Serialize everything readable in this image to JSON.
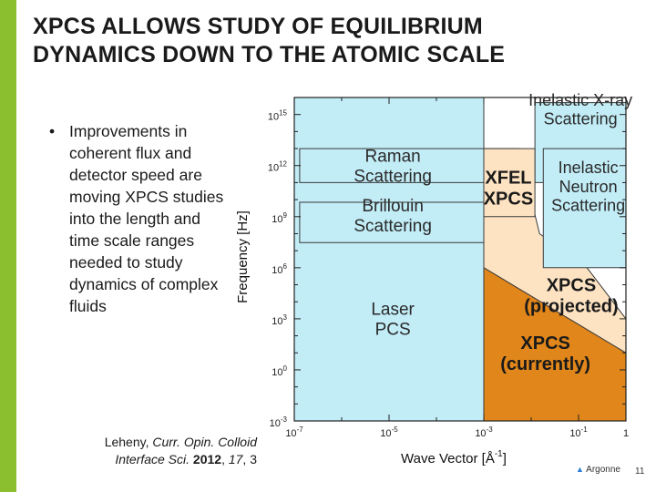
{
  "slide": {
    "title_line1": "XPCS ALLOWS STUDY OF EQUILIBRIUM",
    "title_line2": "DYNAMICS DOWN TO THE ATOMIC SCALE",
    "bullet_marker": "•",
    "bullet_text": "Improvements in coherent flux and detector speed are moving XPCS studies into the length and time scale ranges needed to study dynamics of complex fluids",
    "citation": {
      "authors": "Leheny, ",
      "journal_line1": "Curr. Opin. Colloid",
      "journal_line2": "Interface Sci.",
      "year": "2012",
      "volume": "17",
      "page": "3",
      "sep": ", "
    },
    "footer_logo": "Argonne",
    "page_number": "11",
    "accent_color": "#8cbf2f"
  },
  "chart_data": {
    "type": "area",
    "xlabel": "Wave Vector [Å",
    "xlabel_exp": "-1",
    "xlabel_close": "]",
    "ylabel": "Frequency [Hz]",
    "x_scale": "log",
    "y_scale": "log",
    "xlim": [
      1e-07,
      1
    ],
    "ylim": [
      0.001,
      1e+16
    ],
    "x_ticks": [
      {
        "value": 1e-07,
        "base": "10",
        "exp": "-7"
      },
      {
        "value": 1e-05,
        "base": "10",
        "exp": "-5"
      },
      {
        "value": 0.001,
        "base": "10",
        "exp": "-3"
      },
      {
        "value": 0.1,
        "base": "10",
        "exp": "-1"
      },
      {
        "value": 1,
        "base": "1",
        "exp": ""
      }
    ],
    "y_ticks": [
      {
        "value": 1000000000000000.0,
        "base": "10",
        "exp": "15"
      },
      {
        "value": 1000000000000.0,
        "base": "10",
        "exp": "12"
      },
      {
        "value": 1000000000.0,
        "base": "10",
        "exp": "9"
      },
      {
        "value": 1000000.0,
        "base": "10",
        "exp": "6"
      },
      {
        "value": 1000.0,
        "base": "10",
        "exp": "3"
      },
      {
        "value": 1,
        "base": "10",
        "exp": "0"
      },
      {
        "value": 0.001,
        "base": "10",
        "exp": "-3"
      }
    ],
    "regions": [
      {
        "id": "laser-pcs",
        "lines": [
          "Laser",
          "PCS"
        ],
        "color": "#c2ecf6",
        "polygon": [
          [
            1e-07,
            0.001
          ],
          [
            0.001,
            0.001
          ],
          [
            0.001,
            1e+16
          ],
          [
            1e-07,
            1e+16
          ]
        ],
        "label_at": [
          1.2e-05,
          1000.0
        ],
        "font": 19
      },
      {
        "id": "raman",
        "lines": [
          "Raman",
          "Scattering"
        ],
        "color": "#c2ecf6",
        "polygon": [
          [
            1.3e-07,
            100000000000.0
          ],
          [
            0.001,
            100000000000.0
          ],
          [
            0.001,
            10000000000000.0
          ],
          [
            1.3e-07,
            10000000000000.0
          ]
        ],
        "label_at": [
          1.2e-05,
          1000000000000.0
        ],
        "font": 19
      },
      {
        "id": "brillouin",
        "lines": [
          "Brillouin",
          "Scattering"
        ],
        "color": "#c2ecf6",
        "polygon": [
          [
            1.3e-07,
            30000000.0
          ],
          [
            0.001,
            30000000.0
          ],
          [
            0.001,
            7000000000.0
          ],
          [
            1.3e-07,
            7000000000.0
          ]
        ],
        "label_at": [
          1.2e-05,
          1200000000.0
        ],
        "font": 19
      },
      {
        "id": "inelastic-xray",
        "lines": [
          "Inelastic X-ray",
          "Scattering"
        ],
        "color": "#c2ecf6",
        "polygon": [
          [
            0.012,
            100000000000.0
          ],
          [
            1,
            100000000000.0
          ],
          [
            1,
            5000000000000000.0
          ],
          [
            0.012,
            5000000000000000.0
          ]
        ],
        "label_at": [
          0.11,
          2000000000000000.0
        ],
        "font": 18
      },
      {
        "id": "xpcs-projected",
        "lines": [
          "XPCS",
          "(projected)"
        ],
        "color": "#fde3c2",
        "polygon": [
          [
            0.001,
            0.001
          ],
          [
            1,
            0.001
          ],
          [
            1,
            1000.0
          ],
          [
            0.15,
            1000000.0
          ],
          [
            0.015,
            100000000.0
          ],
          [
            0.0055,
            10000000000000.0
          ],
          [
            0.001,
            10000000000000.0
          ]
        ],
        "label_at": [
          0.07,
          25000.0
        ],
        "font": 20,
        "bold": true
      },
      {
        "id": "xpcs-current",
        "lines": [
          "XPCS",
          "(currently)"
        ],
        "color": "#e0861a",
        "polygon": [
          [
            0.001,
            0.001
          ],
          [
            1,
            0.001
          ],
          [
            1,
            10
          ],
          [
            0.001,
            1000000.0
          ]
        ],
        "label_at": [
          0.02,
          10
        ],
        "font": 20,
        "bold": true
      },
      {
        "id": "xfel-xpcs",
        "lines": [
          "XFEL",
          "XPCS"
        ],
        "color": "#fde3c2",
        "polygon": [
          [
            0.001,
            1000000000.0
          ],
          [
            0.012,
            1000000000.0
          ],
          [
            0.012,
            10000000000000.0
          ],
          [
            0.001,
            10000000000000.0
          ]
        ],
        "label_at": [
          0.0033,
          50000000000.0
        ],
        "font": 20,
        "bold": true
      },
      {
        "id": "inelastic-neutron",
        "lines": [
          "Inelastic",
          "Neutron",
          "Scattering"
        ],
        "color": "#c2ecf6",
        "polygon": [
          [
            0.018,
            1000000.0
          ],
          [
            1,
            1000000.0
          ],
          [
            1,
            10000000000000.0
          ],
          [
            0.018,
            10000000000000.0
          ]
        ],
        "label_at": [
          0.16,
          60000000000.0
        ],
        "font": 18
      }
    ]
  }
}
